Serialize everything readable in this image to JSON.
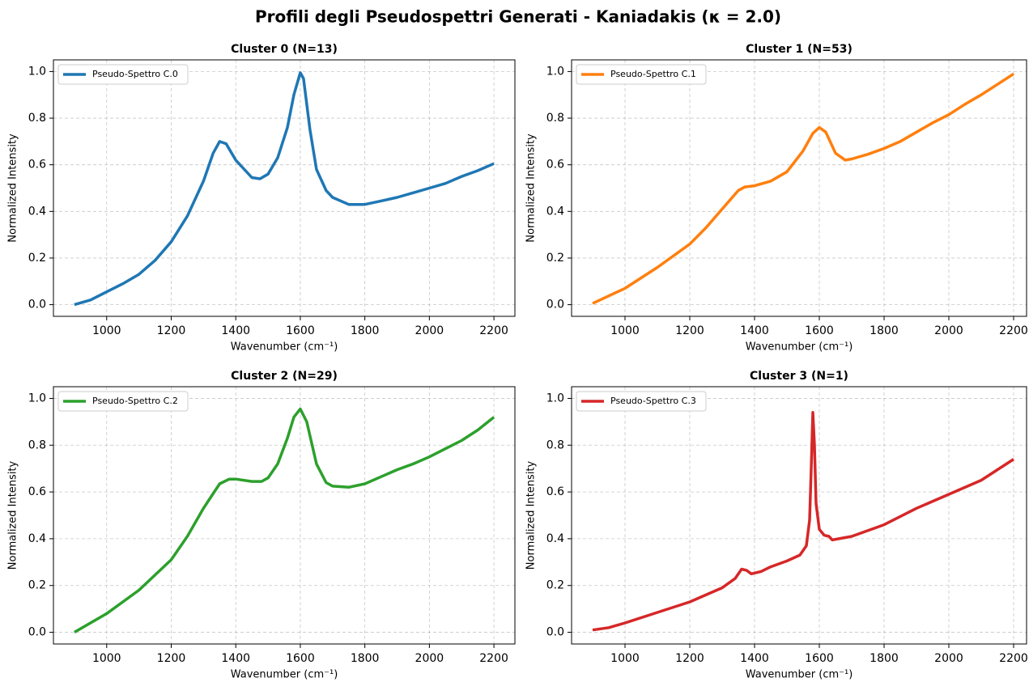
{
  "title": "Profili degli Pseudospettri Generati - Kaniadakis (κ = 2.0)",
  "chart_data": [
    {
      "type": "line",
      "title": "Cluster 0 (N=13)",
      "x_label": "Wavenumber (cm⁻¹)",
      "y_label": "Normalized Intensity",
      "xlim": [
        835,
        2265
      ],
      "ylim": [
        -0.05,
        1.05
      ],
      "xticks": [
        1000,
        1200,
        1400,
        1600,
        1800,
        2000,
        2200
      ],
      "yticks": [
        {
          "value": 0,
          "label": "0.0"
        },
        0.2,
        0.4,
        0.6,
        0.8,
        {
          "value": 1,
          "label": "1.0"
        }
      ],
      "grid": true,
      "legend": "upper left",
      "x": [
        900,
        950,
        1000,
        1050,
        1100,
        1150,
        1200,
        1250,
        1300,
        1330,
        1350,
        1370,
        1400,
        1450,
        1475,
        1500,
        1530,
        1560,
        1580,
        1600,
        1610,
        1630,
        1650,
        1680,
        1700,
        1750,
        1800,
        1850,
        1900,
        1950,
        2000,
        2050,
        2100,
        2150,
        2200
      ],
      "series": [
        {
          "name": "Pseudo-Spettro C.0",
          "color": "#1f77b4",
          "values": [
            0,
            0.02,
            0.055,
            0.09,
            0.13,
            0.19,
            0.27,
            0.38,
            0.53,
            0.65,
            0.7,
            0.69,
            0.62,
            0.545,
            0.54,
            0.56,
            0.63,
            0.76,
            0.9,
            0.995,
            0.97,
            0.75,
            0.58,
            0.49,
            0.46,
            0.43,
            0.43,
            0.445,
            0.46,
            0.48,
            0.5,
            0.52,
            0.55,
            0.575,
            0.605
          ]
        }
      ]
    },
    {
      "type": "line",
      "title": "Cluster 1 (N=53)",
      "x_label": "Wavenumber (cm⁻¹)",
      "y_label": "Normalized Intensity",
      "xlim": [
        835,
        2240
      ],
      "ylim": [
        -0.05,
        1.05
      ],
      "xticks": [
        1000,
        1200,
        1400,
        1600,
        1800,
        2000,
        2200
      ],
      "yticks": [
        {
          "value": 0,
          "label": "0.0"
        },
        0.2,
        0.4,
        0.6,
        0.8,
        {
          "value": 1,
          "label": "1.0"
        }
      ],
      "grid": true,
      "legend": "upper left",
      "x": [
        900,
        1000,
        1100,
        1200,
        1250,
        1300,
        1350,
        1370,
        1400,
        1450,
        1500,
        1550,
        1580,
        1600,
        1620,
        1650,
        1680,
        1700,
        1750,
        1800,
        1850,
        1900,
        1950,
        2000,
        2050,
        2100,
        2150,
        2200
      ],
      "series": [
        {
          "name": "Pseudo-Spettro C.1",
          "color": "#ff7f0e",
          "values": [
            0.005,
            0.07,
            0.16,
            0.26,
            0.33,
            0.41,
            0.49,
            0.505,
            0.51,
            0.53,
            0.57,
            0.66,
            0.735,
            0.76,
            0.74,
            0.65,
            0.62,
            0.625,
            0.645,
            0.67,
            0.7,
            0.74,
            0.78,
            0.815,
            0.86,
            0.9,
            0.945,
            0.99
          ]
        }
      ]
    },
    {
      "type": "line",
      "title": "Cluster 2 (N=29)",
      "x_label": "Wavenumber (cm⁻¹)",
      "y_label": "Normalized Intensity",
      "xlim": [
        835,
        2265
      ],
      "ylim": [
        -0.05,
        1.05
      ],
      "xticks": [
        1000,
        1200,
        1400,
        1600,
        1800,
        2000,
        2200
      ],
      "yticks": [
        {
          "value": 0,
          "label": "0.0"
        },
        0.2,
        0.4,
        0.6,
        0.8,
        {
          "value": 1,
          "label": "1.0"
        }
      ],
      "grid": true,
      "legend": "upper left",
      "x": [
        900,
        1000,
        1100,
        1200,
        1250,
        1300,
        1350,
        1380,
        1400,
        1450,
        1480,
        1500,
        1530,
        1560,
        1580,
        1600,
        1620,
        1650,
        1680,
        1700,
        1750,
        1800,
        1850,
        1900,
        1950,
        2000,
        2050,
        2100,
        2150,
        2200
      ],
      "series": [
        {
          "name": "Pseudo-Spettro C.2",
          "color": "#2ca02c",
          "values": [
            0,
            0.08,
            0.18,
            0.31,
            0.41,
            0.53,
            0.635,
            0.655,
            0.655,
            0.645,
            0.645,
            0.66,
            0.72,
            0.83,
            0.92,
            0.955,
            0.9,
            0.72,
            0.64,
            0.625,
            0.62,
            0.635,
            0.665,
            0.695,
            0.72,
            0.75,
            0.785,
            0.82,
            0.865,
            0.92
          ]
        }
      ]
    },
    {
      "type": "line",
      "title": "Cluster 3 (N=1)",
      "x_label": "Wavenumber (cm⁻¹)",
      "y_label": "Normalized Intensity",
      "xlim": [
        835,
        2240
      ],
      "ylim": [
        -0.05,
        1.05
      ],
      "xticks": [
        1000,
        1200,
        1400,
        1600,
        1800,
        2000,
        2200
      ],
      "yticks": [
        {
          "value": 0,
          "label": "0.0"
        },
        0.2,
        0.4,
        0.6,
        0.8,
        {
          "value": 1,
          "label": "1.0"
        }
      ],
      "grid": true,
      "legend": "upper left",
      "x": [
        900,
        950,
        1000,
        1100,
        1200,
        1300,
        1340,
        1360,
        1375,
        1390,
        1420,
        1450,
        1500,
        1540,
        1560,
        1570,
        1575,
        1580,
        1585,
        1590,
        1600,
        1615,
        1630,
        1640,
        1700,
        1800,
        1900,
        2000,
        2100,
        2200
      ],
      "series": [
        {
          "name": "Pseudo-Spettro C.3",
          "color": "#d62728",
          "values": [
            0.01,
            0.02,
            0.04,
            0.085,
            0.13,
            0.19,
            0.23,
            0.27,
            0.265,
            0.25,
            0.26,
            0.28,
            0.305,
            0.33,
            0.37,
            0.48,
            0.7,
            0.94,
            0.8,
            0.55,
            0.44,
            0.415,
            0.41,
            0.395,
            0.41,
            0.46,
            0.53,
            0.59,
            0.65,
            0.74
          ]
        }
      ]
    }
  ]
}
